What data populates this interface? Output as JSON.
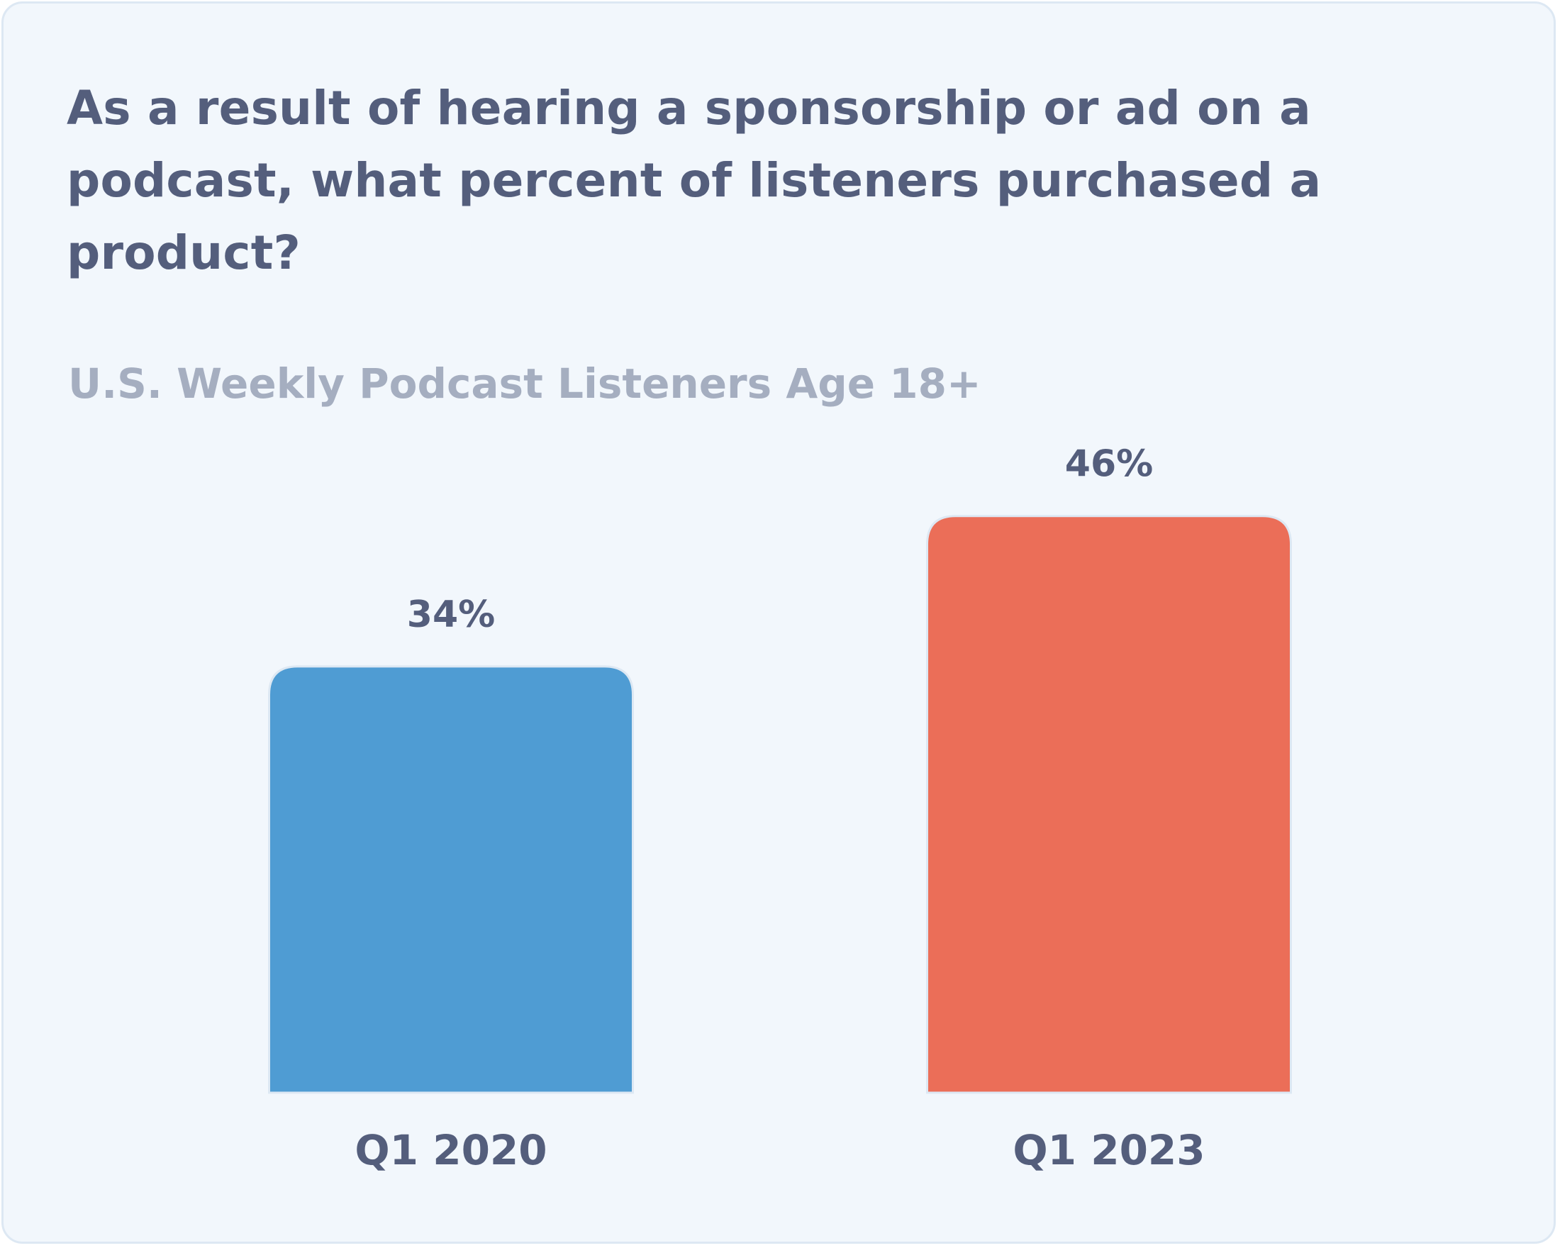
{
  "chart_data": {
    "type": "bar",
    "title": "As a result of hearing a sponsorship or ad on a podcast, what percent of listeners purchased a product?",
    "subtitle": "U.S. Weekly Podcast Listeners Age 18+",
    "categories": [
      "Q1 2020",
      "Q1 2023"
    ],
    "values": [
      34,
      46
    ],
    "value_labels": [
      "34%",
      "46%"
    ],
    "colors": [
      "#4f9cd3",
      "#eb6e58"
    ],
    "ylim": [
      0,
      50
    ],
    "grid": false,
    "legend": "none",
    "xlabel": "",
    "ylabel": ""
  }
}
